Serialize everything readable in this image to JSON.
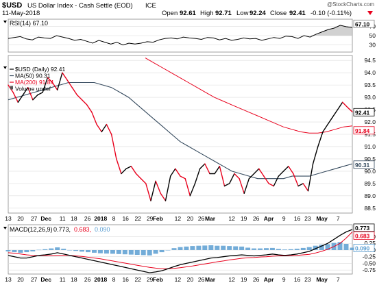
{
  "header": {
    "symbol": "$USD",
    "name": "US Dollar Index - Cash Settle (EOD)",
    "exchange": "ICE",
    "watermark": "@StockCharts.com",
    "date": "11-May-2018",
    "open_label": "Open",
    "open": "92.61",
    "high_label": "High",
    "high": "92.71",
    "low_label": "Low",
    "low": "92.24",
    "close_label": "Close",
    "close": "92.41",
    "change": "-0.10 (-0.11%)",
    "change_icon": "triangle-down-icon"
  },
  "colors": {
    "price_up": "#000000",
    "price_down": "#e8001c",
    "ma50": "#33485c",
    "ma200": "#e8001c",
    "volume": "#5b9ed1",
    "macd_signal": "#e8001c",
    "macd_line": "#000000",
    "grid": "#dcdcdc",
    "last_value_box": "#ffffff"
  },
  "chart_data": [
    {
      "panel": "rsi",
      "type": "line",
      "legend": "RSI(14) 67.10",
      "y_ticks": [
        "70",
        "50",
        "30"
      ],
      "last_value": "67.10",
      "upper_band": 70,
      "lower_band": 30,
      "ylim": [
        15,
        85
      ],
      "values": [
        44,
        46,
        48,
        43,
        41,
        47,
        45,
        44,
        50,
        47,
        44,
        40,
        42,
        38,
        34,
        40,
        36,
        32,
        36,
        30,
        34,
        32,
        34,
        37,
        36,
        41,
        44,
        45,
        43,
        47,
        45,
        44,
        42,
        46,
        45,
        41,
        44,
        40,
        42,
        45,
        43,
        44,
        40,
        43,
        46,
        44,
        49,
        48,
        44,
        50,
        47,
        53,
        58,
        63,
        66,
        72,
        69,
        67.1
      ],
      "fill_above": "#bdbdbd"
    },
    {
      "panel": "price",
      "type": "line",
      "legend": [
        "$USD (Daily) 92.41",
        "MA(50) 90.31",
        "MA(200) 91.84",
        "Volume undef"
      ],
      "y_ticks": [
        "94.5",
        "94.0",
        "93.5",
        "93.0",
        "92.5",
        "92.0",
        "91.5",
        "91.0",
        "90.5",
        "90.0",
        "89.5",
        "89.0",
        "88.5"
      ],
      "ylim": [
        88.3,
        94.7
      ],
      "last_values": {
        "price": "92.41",
        "ma200": "91.84",
        "ma50": "90.31"
      },
      "price": [
        93.5,
        93.2,
        92.8,
        93.1,
        93.4,
        92.9,
        93.1,
        93.2,
        93.8,
        93.6,
        93.3,
        94.0,
        93.7,
        93.4,
        93.1,
        92.9,
        92.7,
        92.4,
        91.9,
        91.6,
        91.9,
        91.5,
        90.5,
        89.9,
        90.1,
        90.2,
        89.9,
        89.7,
        89.5,
        88.8,
        89.6,
        89.1,
        88.8,
        89.8,
        90.1,
        89.8,
        89.7,
        89.0,
        89.5,
        90.1,
        90.3,
        89.9,
        89.9,
        90.2,
        89.4,
        89.5,
        89.9,
        89.7,
        89.1,
        89.7,
        89.9,
        90.1,
        89.8,
        89.5,
        89.4,
        89.8,
        90.0,
        90.2,
        89.9,
        89.4,
        89.5,
        89.2,
        90.3,
        91.0,
        91.6,
        91.9,
        92.2,
        92.5,
        92.8,
        92.6,
        92.41
      ],
      "ma50": [
        92.9,
        93.0,
        93.1,
        93.2,
        93.3,
        93.4,
        93.5,
        93.6,
        93.6,
        93.6,
        93.6,
        93.5,
        93.4,
        93.2,
        93.0,
        92.7,
        92.4,
        92.1,
        91.8,
        91.5,
        91.2,
        91.0,
        90.8,
        90.6,
        90.4,
        90.2,
        90.0,
        89.9,
        89.8,
        89.7,
        89.7,
        89.7,
        89.7,
        89.8,
        89.8,
        89.8,
        89.9,
        90.0,
        90.1,
        90.2,
        90.3
      ],
      "ma200": [
        94.6,
        94.4,
        94.2,
        94.0,
        93.8,
        93.6,
        93.4,
        93.2,
        93.0,
        92.85,
        92.7,
        92.55,
        92.4,
        92.25,
        92.1,
        91.95,
        91.8,
        91.7,
        91.6,
        91.55,
        91.55,
        91.6,
        91.7,
        91.8,
        91.84
      ]
    },
    {
      "panel": "macd",
      "type": "line",
      "legend": "MACD(12,26,9) 0.773, 0.683, 0.090",
      "legend_parts": {
        "label": "MACD(12,26,9)",
        "macd": "0.773",
        "signal": "0.683",
        "hist": "0.090"
      },
      "y_ticks": [
        "0.50",
        "0.25",
        "0.00",
        "-0.25",
        "-0.50",
        "-0.75"
      ],
      "ylim": [
        -0.9,
        0.95
      ],
      "last_values": {
        "macd": "0.773",
        "signal": "0.683",
        "hist": "0.090"
      },
      "macd": [
        -0.2,
        -0.25,
        -0.3,
        -0.3,
        -0.25,
        -0.2,
        -0.18,
        -0.15,
        -0.1,
        -0.15,
        -0.2,
        -0.25,
        -0.3,
        -0.35,
        -0.4,
        -0.45,
        -0.5,
        -0.55,
        -0.6,
        -0.65,
        -0.7,
        -0.75,
        -0.8,
        -0.85,
        -0.82,
        -0.78,
        -0.7,
        -0.62,
        -0.55,
        -0.5,
        -0.45,
        -0.4,
        -0.35,
        -0.3,
        -0.28,
        -0.25,
        -0.22,
        -0.2,
        -0.18,
        -0.2,
        -0.22,
        -0.2,
        -0.18,
        -0.15,
        -0.18,
        -0.2,
        -0.18,
        -0.15,
        -0.1,
        -0.05,
        0.05,
        0.15,
        0.25,
        0.4,
        0.55,
        0.68,
        0.77
      ],
      "signal": [
        -0.1,
        -0.12,
        -0.15,
        -0.18,
        -0.2,
        -0.21,
        -0.21,
        -0.21,
        -0.2,
        -0.2,
        -0.2,
        -0.22,
        -0.24,
        -0.27,
        -0.3,
        -0.33,
        -0.37,
        -0.41,
        -0.45,
        -0.49,
        -0.53,
        -0.57,
        -0.61,
        -0.65,
        -0.68,
        -0.7,
        -0.7,
        -0.69,
        -0.66,
        -0.63,
        -0.6,
        -0.56,
        -0.52,
        -0.48,
        -0.44,
        -0.41,
        -0.37,
        -0.34,
        -0.31,
        -0.29,
        -0.28,
        -0.26,
        -0.25,
        -0.23,
        -0.22,
        -0.22,
        -0.21,
        -0.2,
        -0.18,
        -0.16,
        -0.11,
        -0.05,
        0.03,
        0.13,
        0.25,
        0.45,
        0.68
      ],
      "histogram": [
        -0.05,
        -0.08,
        -0.1,
        -0.08,
        -0.05,
        0.01,
        0.03,
        0.06,
        0.1,
        0.05,
        0.0,
        -0.03,
        -0.06,
        -0.08,
        -0.1,
        -0.12,
        -0.13,
        -0.14,
        -0.15,
        -0.16,
        -0.17,
        -0.18,
        -0.19,
        -0.2,
        -0.14,
        -0.08,
        0.0,
        0.07,
        0.11,
        0.13,
        0.15,
        0.16,
        0.17,
        0.18,
        0.16,
        0.16,
        0.15,
        0.14,
        0.13,
        0.09,
        0.06,
        0.06,
        0.07,
        0.08,
        0.04,
        0.02,
        0.03,
        0.05,
        0.08,
        0.11,
        0.16,
        0.2,
        0.22,
        0.27,
        0.3,
        0.23,
        0.09
      ]
    }
  ],
  "x_axis": {
    "middle_labels": [
      {
        "label": "13",
        "pos": 0
      },
      {
        "label": "20",
        "pos": 0.042
      },
      {
        "label": "27",
        "pos": 0.088
      },
      {
        "label": "Dec",
        "pos": 0.129,
        "bold": true
      },
      {
        "label": "11",
        "pos": 0.185
      },
      {
        "label": "18",
        "pos": 0.224
      },
      {
        "label": "26",
        "pos": 0.27
      },
      {
        "label": "2018",
        "pos": 0.315,
        "bold": true
      },
      {
        "label": "8",
        "pos": 0.36
      },
      {
        "label": "16",
        "pos": 0.4
      },
      {
        "label": "22",
        "pos": 0.442
      },
      {
        "label": "29",
        "pos": 0.483
      },
      {
        "label": "Feb",
        "pos": 0.51,
        "bold": true
      },
      {
        "label": "12",
        "pos": 0.578
      },
      {
        "label": "20",
        "pos": 0.62
      },
      {
        "label": "26",
        "pos": 0.658
      },
      {
        "label": "Mar",
        "pos": 0.688,
        "bold": true
      },
      {
        "label": "12",
        "pos": 0.762
      },
      {
        "label": "19",
        "pos": 0.803
      },
      {
        "label": "26",
        "pos": 0.845
      },
      {
        "label": "Apr",
        "pos": 0.888,
        "bold": true
      },
      {
        "label": "9",
        "pos": 0.94
      },
      {
        "label": "16",
        "pos": 0.985
      }
    ],
    "middle_labels_2": [
      {
        "label": "23",
        "pos": 0.03
      },
      {
        "label": "May",
        "pos": 0.1,
        "bold": true
      },
      {
        "label": "7",
        "pos": 0.18
      }
    ],
    "bottom_labels": [
      {
        "label": "13",
        "pos": 0
      },
      {
        "label": "20",
        "pos": 0.042
      },
      {
        "label": "27",
        "pos": 0.088
      },
      {
        "label": "Dec",
        "pos": 0.129,
        "bold": true
      },
      {
        "label": "11",
        "pos": 0.185
      },
      {
        "label": "18",
        "pos": 0.224
      },
      {
        "label": "26",
        "pos": 0.27
      },
      {
        "label": "2018",
        "pos": 0.315,
        "bold": true
      },
      {
        "label": "8",
        "pos": 0.36
      },
      {
        "label": "16",
        "pos": 0.4
      },
      {
        "label": "22",
        "pos": 0.442
      },
      {
        "label": "29",
        "pos": 0.483
      },
      {
        "label": "Feb",
        "pos": 0.51,
        "bold": true
      },
      {
        "label": "12",
        "pos": 0.578
      },
      {
        "label": "20",
        "pos": 0.62
      },
      {
        "label": "26",
        "pos": 0.658
      },
      {
        "label": "Mar",
        "pos": 0.688,
        "bold": true
      },
      {
        "label": "12",
        "pos": 0.762
      },
      {
        "label": "19",
        "pos": 0.803
      },
      {
        "label": "26",
        "pos": 0.845
      },
      {
        "label": "Apr",
        "pos": 0.888,
        "bold": true
      },
      {
        "label": "9",
        "pos": 0.94
      },
      {
        "label": "16",
        "pos": 0.985
      }
    ],
    "bottom_labels_2": [
      {
        "label": "23",
        "pos": 0.03
      },
      {
        "label": "May",
        "pos": 0.1,
        "bold": true
      },
      {
        "label": "7",
        "pos": 0.18
      }
    ]
  }
}
